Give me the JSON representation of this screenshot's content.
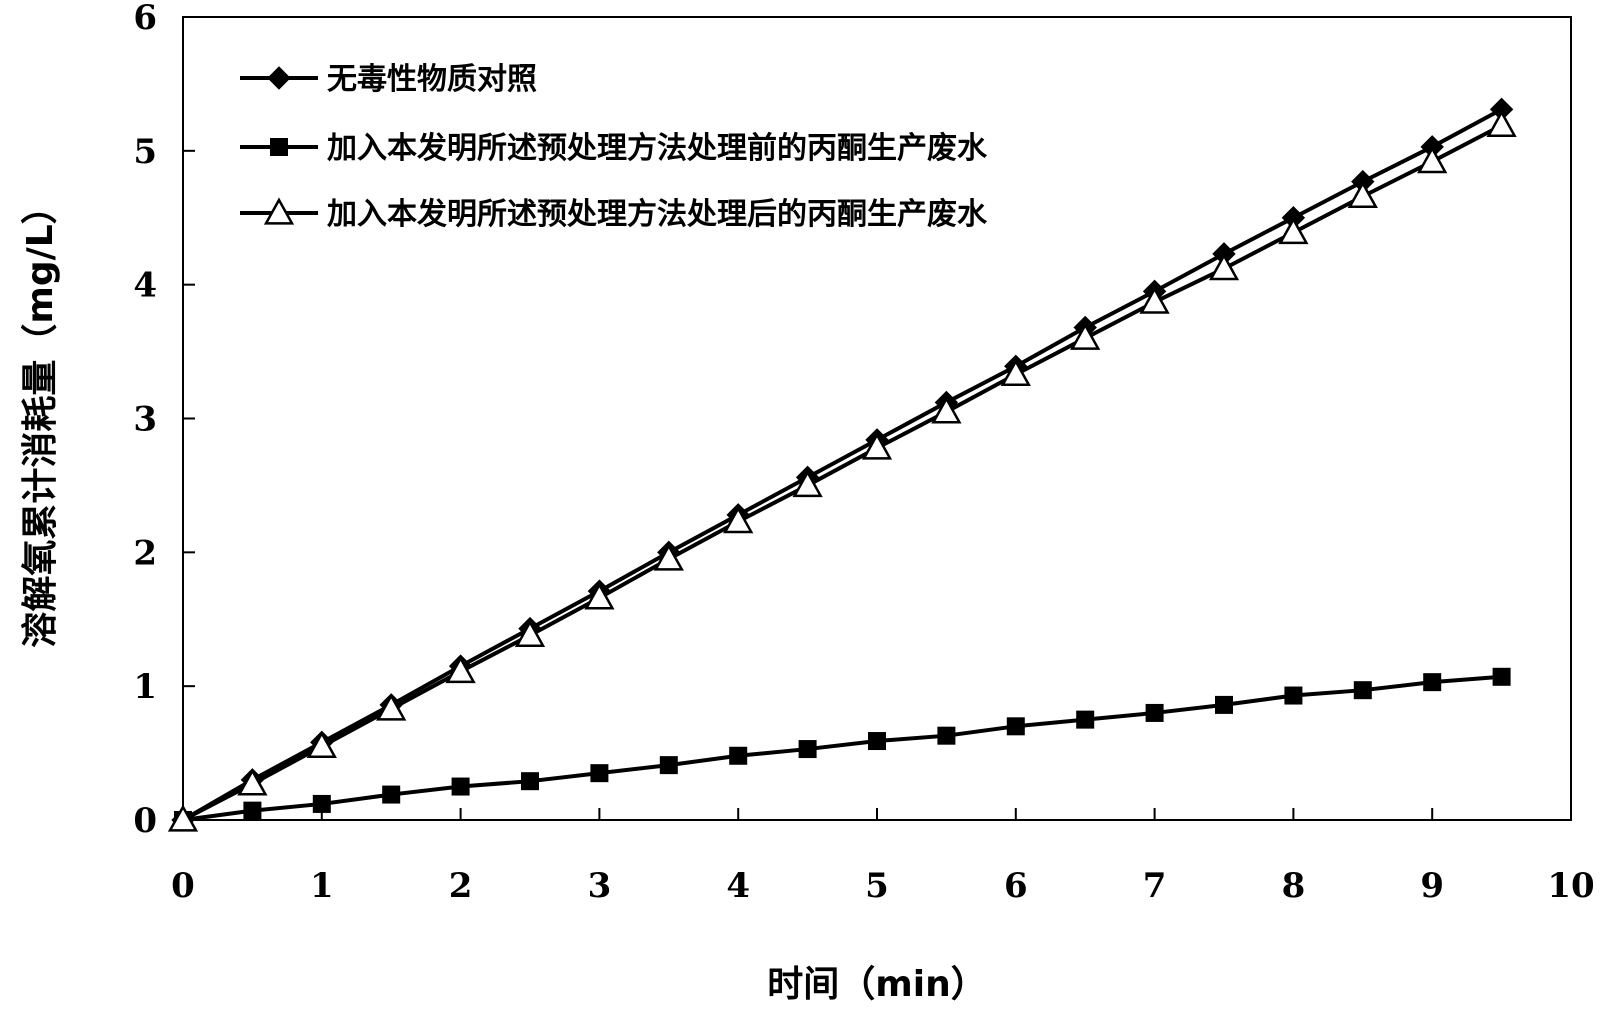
{
  "chart_data": {
    "type": "line",
    "xlabel": "时间（min）",
    "ylabel": "溶解氧累计消耗量（mg/L）",
    "xlim": [
      0,
      10
    ],
    "ylim": [
      0,
      6
    ],
    "xticks": [
      0,
      1,
      2,
      3,
      4,
      5,
      6,
      7,
      8,
      9,
      10
    ],
    "yticks": [
      0,
      1,
      2,
      3,
      4,
      5,
      6
    ],
    "grid": false,
    "legend_position": "top-left",
    "series": [
      {
        "name": "无毒性物质对照",
        "marker": "diamond",
        "x": [
          0,
          0.5,
          1,
          1.5,
          2,
          2.5,
          3,
          3.5,
          4,
          4.5,
          5,
          5.5,
          6,
          6.5,
          7,
          7.5,
          8,
          8.5,
          9,
          9.5
        ],
        "y": [
          0,
          0.3,
          0.58,
          0.86,
          1.15,
          1.43,
          1.71,
          2.0,
          2.28,
          2.56,
          2.84,
          3.12,
          3.39,
          3.68,
          3.95,
          4.23,
          4.5,
          4.77,
          5.03,
          5.31
        ]
      },
      {
        "name": "加入本发明所述预处理方法处理前的丙酮生产废水",
        "marker": "square",
        "x": [
          0,
          0.5,
          1,
          1.5,
          2,
          2.5,
          3,
          3.5,
          4,
          4.5,
          5,
          5.5,
          6,
          6.5,
          7,
          7.5,
          8,
          8.5,
          9,
          9.5
        ],
        "y": [
          0,
          0.07,
          0.12,
          0.19,
          0.25,
          0.29,
          0.35,
          0.41,
          0.48,
          0.53,
          0.59,
          0.63,
          0.7,
          0.75,
          0.8,
          0.86,
          0.93,
          0.97,
          1.03,
          1.07
        ]
      },
      {
        "name": "加入本发明所述预处理方法处理后的丙酮生产废水",
        "marker": "triangle",
        "x": [
          0,
          0.5,
          1,
          1.5,
          2,
          2.5,
          3,
          3.5,
          4,
          4.5,
          5,
          5.5,
          6,
          6.5,
          7,
          7.5,
          8,
          8.5,
          9,
          9.5
        ],
        "y": [
          0,
          0.27,
          0.55,
          0.83,
          1.11,
          1.38,
          1.66,
          1.95,
          2.23,
          2.5,
          2.78,
          3.05,
          3.33,
          3.6,
          3.87,
          4.12,
          4.39,
          4.66,
          4.92,
          5.19
        ]
      }
    ]
  }
}
